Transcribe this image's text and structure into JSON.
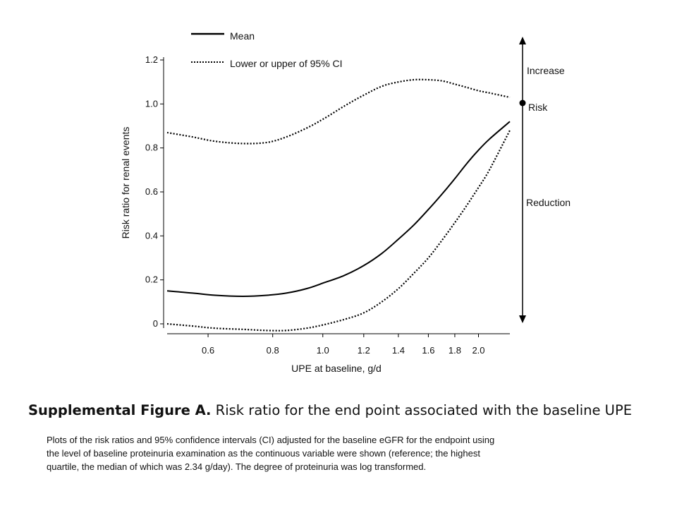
{
  "chart_data": {
    "type": "line",
    "title": "",
    "xlabel": "UPE at baseline, g/d",
    "ylabel": "Risk ratio for renal events",
    "x_scale": "log",
    "xlim": [
      0.5,
      2.3
    ],
    "ylim": [
      0,
      1.2
    ],
    "x_ticks": [
      "0.6",
      "0.8",
      "1.0",
      "1.2",
      "1.4",
      "1.6",
      "1.8",
      "2.0"
    ],
    "y_ticks": [
      "0",
      "0.2",
      "0.4",
      "0.6",
      "0.8",
      "1.0",
      "1.2"
    ],
    "grid": false,
    "legend_position": "top",
    "series": [
      {
        "name": "Mean",
        "style": "solid",
        "x": [
          0.5,
          0.56,
          0.62,
          0.7,
          0.78,
          0.85,
          0.93,
          1.0,
          1.1,
          1.2,
          1.3,
          1.4,
          1.5,
          1.6,
          1.7,
          1.8,
          1.9,
          2.0,
          2.1,
          2.3
        ],
        "y": [
          0.15,
          0.14,
          0.13,
          0.125,
          0.13,
          0.14,
          0.16,
          0.185,
          0.22,
          0.265,
          0.32,
          0.385,
          0.45,
          0.52,
          0.59,
          0.66,
          0.73,
          0.79,
          0.84,
          0.92
        ]
      },
      {
        "name": "Lower or upper of 95% CI",
        "style": "dotted",
        "x": [
          0.5,
          0.56,
          0.62,
          0.7,
          0.78,
          0.85,
          0.93,
          1.0,
          1.1,
          1.2,
          1.3,
          1.4,
          1.5,
          1.6,
          1.7,
          1.8,
          1.9,
          2.0,
          2.1,
          2.3
        ],
        "y": [
          0.0,
          -0.01,
          -0.02,
          -0.025,
          -0.03,
          -0.03,
          -0.02,
          -0.005,
          0.02,
          0.05,
          0.1,
          0.16,
          0.23,
          0.3,
          0.38,
          0.46,
          0.54,
          0.62,
          0.7,
          0.88
        ]
      },
      {
        "name": "Lower or upper of 95% CI",
        "style": "dotted",
        "x": [
          0.5,
          0.56,
          0.62,
          0.7,
          0.78,
          0.85,
          0.93,
          1.0,
          1.1,
          1.2,
          1.3,
          1.4,
          1.5,
          1.6,
          1.7,
          1.8,
          1.9,
          2.0,
          2.1,
          2.3
        ],
        "y": [
          0.87,
          0.85,
          0.83,
          0.82,
          0.825,
          0.85,
          0.89,
          0.93,
          0.99,
          1.04,
          1.08,
          1.1,
          1.11,
          1.11,
          1.105,
          1.09,
          1.075,
          1.06,
          1.05,
          1.03
        ]
      }
    ],
    "annotations": {
      "increase": "Increase",
      "risk": "Risk",
      "reduction": "Reduction",
      "reference_y": 1.0
    }
  },
  "legend": {
    "mean": "Mean",
    "ci": "Lower or upper of 95% CI"
  },
  "caption": {
    "title_bold": "Supplemental Figure A.",
    "title_rest": " Risk ratio for the end point associated with the baseline UPE",
    "body_lines": [
      "Plots of the risk ratios and 95% confidence intervals (CI) adjusted for the baseline eGFR for the endpoint using",
      "the level of baseline proteinuria examination as the continuous variable were shown (reference; the highest",
      "quartile, the median of which was 2.34 g/day). The degree of proteinuria was log transformed."
    ]
  }
}
